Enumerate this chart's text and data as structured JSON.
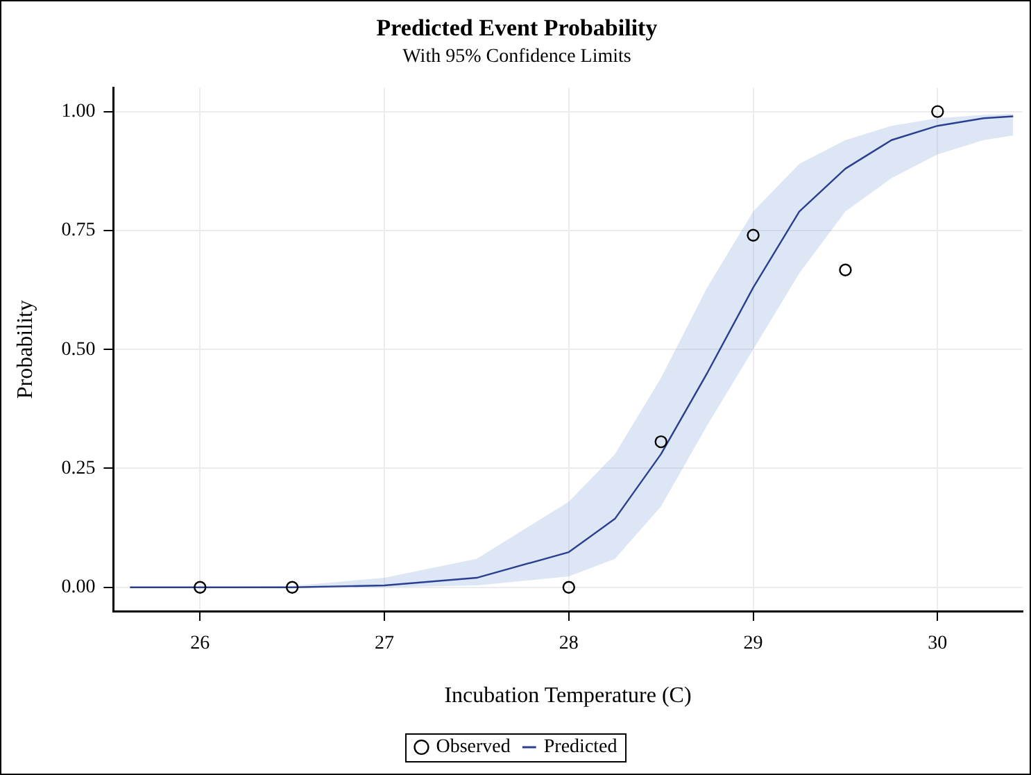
{
  "chart_data": {
    "type": "line",
    "title": "Predicted Event Probability",
    "subtitle": "With 95% Confidence Limits",
    "xlabel": "Incubation Temperature (C)",
    "ylabel": "Probability",
    "xlim": [
      25.53,
      30.46
    ],
    "xticks": [
      26,
      27,
      28,
      29,
      30
    ],
    "ylim": [
      -0.05,
      1.05
    ],
    "yticks": [
      {
        "value": 0,
        "label": "0.00"
      },
      {
        "value": 0.25,
        "label": "0.25"
      },
      {
        "value": 0.5,
        "label": "0.50"
      },
      {
        "value": 0.75,
        "label": "0.75"
      },
      {
        "value": 1,
        "label": "1.00"
      }
    ],
    "grid": true,
    "legend": "bottom",
    "series": [
      {
        "name": "Observed",
        "type": "scatter",
        "marker": "circle",
        "color": "#000000",
        "x": [
          26,
          26.5,
          28,
          28.5,
          29,
          29.5,
          30
        ],
        "values": [
          0,
          0,
          0,
          0.306,
          0.74,
          0.667,
          1
        ]
      },
      {
        "name": "Predicted",
        "color": "#2a3f8f",
        "line_style": "solid",
        "marker": "none",
        "x": [
          25.62,
          26,
          26.5,
          27,
          27.5,
          28,
          28.25,
          28.5,
          28.75,
          29,
          29.25,
          29.5,
          29.75,
          30,
          30.25,
          30.41
        ],
        "values": [
          0,
          0,
          0,
          0.004,
          0.02,
          0.074,
          0.144,
          0.28,
          0.45,
          0.63,
          0.79,
          0.88,
          0.94,
          0.97,
          0.986,
          0.99
        ],
        "lower": [
          0,
          0,
          0,
          0,
          0.004,
          0.023,
          0.06,
          0.17,
          0.34,
          0.5,
          0.66,
          0.79,
          0.86,
          0.91,
          0.94,
          0.95
        ],
        "upper": [
          0,
          0,
          0.003,
          0.02,
          0.06,
          0.18,
          0.28,
          0.44,
          0.63,
          0.79,
          0.89,
          0.94,
          0.97,
          0.986,
          0.993,
          0.995
        ]
      }
    ]
  }
}
